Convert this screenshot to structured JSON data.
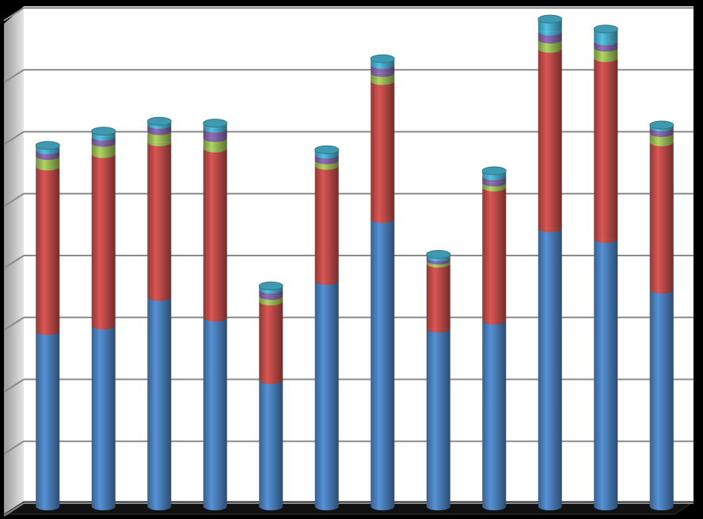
{
  "chart_data": {
    "type": "bar",
    "stacked": true,
    "categories": [
      null,
      null,
      null,
      null,
      null,
      null,
      null,
      null,
      null,
      null,
      null,
      null
    ],
    "series": [
      {
        "color": "#4a7ebb",
        "values": [
          2.83,
          2.92,
          3.38,
          3.05,
          2.04,
          3.64,
          4.64,
          2.87,
          3.0,
          4.49,
          4.32,
          3.5
        ]
      },
      {
        "color": "#be4b48",
        "values": [
          2.66,
          2.77,
          2.5,
          2.73,
          1.27,
          1.86,
          2.23,
          1.05,
          2.15,
          2.9,
          2.92,
          2.38
        ]
      },
      {
        "color": "#98b954",
        "values": [
          0.17,
          0.18,
          0.18,
          0.17,
          0.09,
          0.09,
          0.13,
          0.05,
          0.08,
          0.15,
          0.17,
          0.15
        ]
      },
      {
        "color": "#7d60a0",
        "values": [
          0.09,
          0.1,
          0.1,
          0.15,
          0.1,
          0.09,
          0.13,
          0.05,
          0.1,
          0.13,
          0.1,
          0.09
        ]
      },
      {
        "color": "#46aac5",
        "values": [
          0.08,
          0.09,
          0.06,
          0.09,
          0.06,
          0.08,
          0.1,
          0.05,
          0.09,
          0.2,
          0.2,
          0.04
        ]
      }
    ],
    "ylim": [
      0,
      8
    ],
    "yticks": [
      0,
      1,
      2,
      3,
      4,
      5,
      6,
      7,
      8
    ],
    "grid": true
  }
}
